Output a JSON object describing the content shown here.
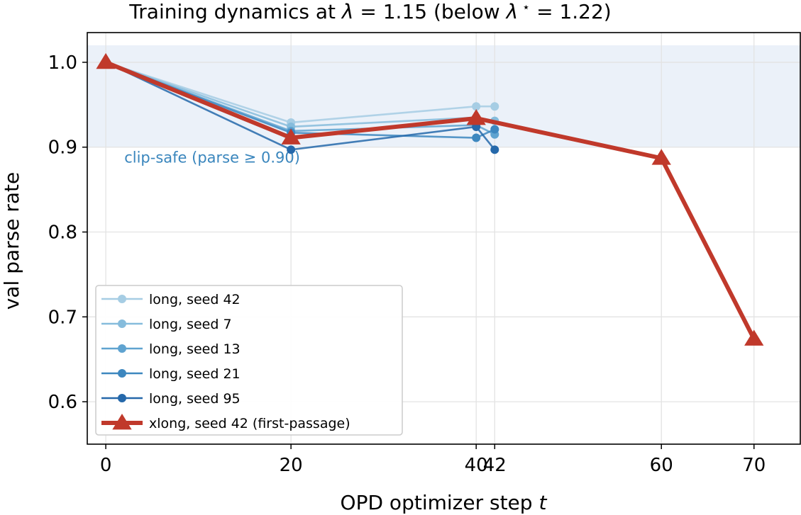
{
  "chart_data": {
    "type": "line",
    "title_parts": [
      "Training dynamics at ",
      "λ",
      " = 1.15 (below ",
      "λ",
      " ⋆",
      " = 1.22)"
    ],
    "xlabel_parts": [
      "OPD optimizer step ",
      "t"
    ],
    "ylabel": "val parse rate",
    "xlim": [
      -2,
      75
    ],
    "ylim": [
      0.55,
      1.035
    ],
    "x_ticks": [
      0,
      20,
      40,
      42,
      60,
      70
    ],
    "x_tick_labels": [
      "0",
      "20",
      "40",
      "42",
      "60",
      "70"
    ],
    "y_ticks": [
      0.6,
      0.7,
      0.8,
      0.9,
      1.0
    ],
    "y_tick_labels": [
      "0.6",
      "0.7",
      "0.8",
      "0.9",
      "1.0"
    ],
    "grid": true,
    "band": {
      "y_from": 0.9,
      "y_to": 1.02,
      "color": "#c6d7ee"
    },
    "band_label": "clip-safe (parse ≥ 0.90)",
    "band_label_position": {
      "x": 2,
      "y": 0.882
    },
    "band_label_color": "#3a86bd",
    "legend_position": "lower-left",
    "series": [
      {
        "name": "long, seed 42",
        "color": "#a6cde4",
        "marker": "circle",
        "x": [
          0,
          20,
          40,
          42
        ],
        "y": [
          1.0,
          0.929,
          0.948,
          0.948
        ]
      },
      {
        "name": "long, seed 7",
        "color": "#86bcdc",
        "marker": "circle",
        "x": [
          0,
          20,
          40,
          42
        ],
        "y": [
          1.0,
          0.924,
          0.935,
          0.931
        ]
      },
      {
        "name": "long, seed 13",
        "color": "#5fa3d0",
        "marker": "circle",
        "x": [
          0,
          20,
          40,
          42
        ],
        "y": [
          1.0,
          0.919,
          0.926,
          0.915
        ]
      },
      {
        "name": "long, seed 21",
        "color": "#3d87bf",
        "marker": "circle",
        "x": [
          0,
          20,
          40,
          42
        ],
        "y": [
          1.0,
          0.917,
          0.911,
          0.921
        ]
      },
      {
        "name": "long, seed 95",
        "color": "#2568aa",
        "marker": "circle",
        "x": [
          0,
          20,
          40,
          42
        ],
        "y": [
          1.0,
          0.897,
          0.924,
          0.897
        ]
      },
      {
        "name": "xlong, seed 42 (first-passage)",
        "color": "#c0392b",
        "marker": "triangle",
        "x": [
          0,
          20,
          40,
          60,
          70
        ],
        "y": [
          1.0,
          0.911,
          0.934,
          0.887,
          0.674
        ]
      }
    ]
  }
}
